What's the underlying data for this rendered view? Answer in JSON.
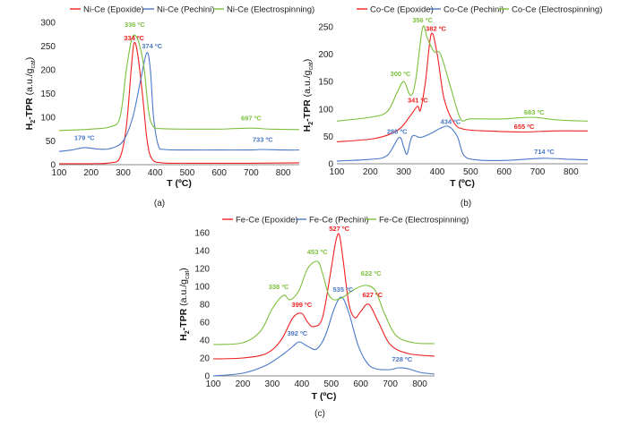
{
  "colors": {
    "red": "#f02020",
    "blue": "#4a78c8",
    "green": "#7cbf3c"
  },
  "chart_data": [
    {
      "type": "line",
      "panel_label": "(a)",
      "xlabel": "T (ºC)",
      "ylabel_main": "H",
      "ylabel_sub": "2",
      "ylabel_rest": "-TPR",
      "ylabel_unit_prefix": "(a.u./g",
      "ylabel_unit_sub": "cat",
      "ylabel_unit_suffix": ")",
      "xlim": [
        100,
        850
      ],
      "ylim": [
        0,
        300
      ],
      "xticks": [
        "100",
        "200",
        "300",
        "400",
        "500",
        "600",
        "700",
        "800"
      ],
      "yticks": [
        "0",
        "50",
        "100",
        "150",
        "200",
        "250",
        "300"
      ],
      "series": [
        {
          "name": "Ni-Ce (Epoxide)",
          "color": "#f02020",
          "x": [
            100,
            200,
            260,
            290,
            310,
            325,
            334,
            345,
            360,
            375,
            390,
            420,
            500,
            700,
            850
          ],
          "y": [
            2,
            2,
            4,
            15,
            80,
            200,
            256,
            235,
            150,
            50,
            12,
            4,
            3,
            3,
            4
          ]
        },
        {
          "name": "Ni-Ce (Pechini)",
          "color": "#4a78c8",
          "x": [
            100,
            140,
            179,
            220,
            260,
            300,
            330,
            355,
            374,
            385,
            395,
            410,
            430,
            500,
            600,
            700,
            733,
            800,
            850
          ],
          "y": [
            28,
            31,
            36,
            33,
            34,
            50,
            100,
            180,
            236,
            200,
            100,
            40,
            32,
            31,
            31,
            31,
            32,
            31,
            31
          ]
        },
        {
          "name": "Ni-Ce (Electrospinning)",
          "color": "#7cbf3c",
          "x": [
            100,
            200,
            260,
            290,
            310,
            325,
            336,
            350,
            365,
            380,
            395,
            420,
            500,
            600,
            697,
            760,
            850
          ],
          "y": [
            72,
            75,
            80,
            100,
            200,
            260,
            273,
            255,
            205,
            110,
            80,
            76,
            75,
            75,
            77,
            75,
            74
          ]
        }
      ],
      "annotations": [
        {
          "text": "336 ºC",
          "color": "#7cbf3c",
          "x": 336,
          "y": 291
        },
        {
          "text": "334 ºC",
          "color": "#f02020",
          "x": 334,
          "y": 262
        },
        {
          "text": "374 ºC",
          "color": "#4a78c8",
          "x": 390,
          "y": 245
        },
        {
          "text": "179 ºC",
          "color": "#4a78c8",
          "x": 179,
          "y": 52
        },
        {
          "text": "697 ºC",
          "color": "#7cbf3c",
          "x": 700,
          "y": 93
        },
        {
          "text": "733 ºC",
          "color": "#4a78c8",
          "x": 736,
          "y": 48
        }
      ],
      "legend": [
        "Ni-Ce (Epoxide)",
        "Ni-Ce (Pechini)",
        "Ni-Ce (Electrospinning)"
      ]
    },
    {
      "type": "line",
      "panel_label": "(b)",
      "xlabel": "T (ºC)",
      "ylabel_main": "H",
      "ylabel_sub": "2",
      "ylabel_rest": "-TPR",
      "ylabel_unit_prefix": "(a.u./g",
      "ylabel_unit_sub": "cat",
      "ylabel_unit_suffix": ")",
      "xlim": [
        100,
        850
      ],
      "ylim": [
        0,
        250
      ],
      "xticks": [
        "100",
        "200",
        "300",
        "400",
        "500",
        "600",
        "700",
        "800"
      ],
      "yticks": [
        "0",
        "50",
        "100",
        "150",
        "200",
        "250"
      ],
      "series": [
        {
          "name": "Co-Ce (Epoxide)",
          "color": "#f02020",
          "x": [
            100,
            200,
            250,
            290,
            320,
            341,
            350,
            365,
            382,
            400,
            420,
            450,
            480,
            550,
            655,
            750,
            850
          ],
          "y": [
            40,
            45,
            52,
            65,
            88,
            105,
            98,
            150,
            237,
            200,
            120,
            75,
            63,
            60,
            58,
            60,
            60
          ]
        },
        {
          "name": "Co-Ce (Pechini)",
          "color": "#4a78c8",
          "x": [
            100,
            200,
            250,
            286,
            300,
            310,
            325,
            350,
            380,
            410,
            434,
            460,
            480,
            520,
            600,
            714,
            800,
            850
          ],
          "y": [
            5,
            8,
            15,
            48,
            30,
            18,
            50,
            48,
            55,
            65,
            68,
            50,
            15,
            7,
            6,
            10,
            8,
            7
          ]
        },
        {
          "name": "Co-Ce (Electrospinning)",
          "color": "#7cbf3c",
          "x": [
            100,
            200,
            250,
            280,
            300,
            320,
            335,
            356,
            370,
            390,
            410,
            440,
            470,
            500,
            600,
            683,
            760,
            850
          ],
          "y": [
            78,
            85,
            95,
            130,
            150,
            125,
            150,
            248,
            230,
            205,
            200,
            140,
            82,
            82,
            82,
            85,
            80,
            78
          ]
        }
      ],
      "annotations": [
        {
          "text": "356 ºC",
          "color": "#7cbf3c",
          "x": 356,
          "y": 258
        },
        {
          "text": "382 ºC",
          "color": "#f02020",
          "x": 396,
          "y": 243
        },
        {
          "text": "300 ºC",
          "color": "#7cbf3c",
          "x": 290,
          "y": 160
        },
        {
          "text": "341 ºC",
          "color": "#f02020",
          "x": 342,
          "y": 112
        },
        {
          "text": "286 ºC",
          "color": "#4a78c8",
          "x": 280,
          "y": 55
        },
        {
          "text": "434 ºC",
          "color": "#4a78c8",
          "x": 440,
          "y": 73
        },
        {
          "text": "683 ºC",
          "color": "#7cbf3c",
          "x": 690,
          "y": 90
        },
        {
          "text": "655 ºC",
          "color": "#f02020",
          "x": 660,
          "y": 64
        },
        {
          "text": "714 ºC",
          "color": "#4a78c8",
          "x": 720,
          "y": 18
        }
      ],
      "legend": [
        "Co-Ce (Epoxide)",
        "Co-Ce (Pechini)",
        "Co-Ce (Electrospinning)"
      ]
    },
    {
      "type": "line",
      "panel_label": "(c)",
      "xlabel": "T (ºC)",
      "ylabel_main": "H",
      "ylabel_sub": "2",
      "ylabel_rest": "-TPR",
      "ylabel_unit_prefix": "(a.u./g",
      "ylabel_unit_sub": "cat",
      "ylabel_unit_suffix": ")",
      "xlim": [
        100,
        850
      ],
      "ylim": [
        0,
        160
      ],
      "xticks": [
        "100",
        "200",
        "300",
        "400",
        "500",
        "600",
        "700",
        "800"
      ],
      "yticks": [
        "0",
        "20",
        "40",
        "60",
        "80",
        "100",
        "120",
        "140",
        "160"
      ],
      "series": [
        {
          "name": "Fe-Ce (Epoxide)",
          "color": "#f02020",
          "x": [
            100,
            200,
            280,
            330,
            370,
            399,
            420,
            440,
            470,
            500,
            515,
            527,
            540,
            560,
            580,
            600,
            627,
            660,
            700,
            760,
            850
          ],
          "y": [
            19,
            20,
            25,
            40,
            65,
            70,
            60,
            55,
            65,
            120,
            150,
            158,
            130,
            80,
            65,
            72,
            80,
            60,
            35,
            25,
            22
          ]
        },
        {
          "name": "Fe-Ce (Pechini)",
          "color": "#4a78c8",
          "x": [
            100,
            200,
            280,
            340,
            370,
            392,
            420,
            450,
            480,
            510,
            535,
            560,
            590,
            620,
            650,
            700,
            728,
            760,
            800,
            850
          ],
          "y": [
            0,
            3,
            12,
            25,
            33,
            38,
            33,
            30,
            45,
            75,
            88,
            70,
            35,
            15,
            8,
            7,
            9,
            8,
            4,
            2
          ]
        },
        {
          "name": "Fe-Ce (Electrospinning)",
          "color": "#7cbf3c",
          "x": [
            100,
            200,
            260,
            300,
            338,
            360,
            390,
            420,
            453,
            470,
            490,
            510,
            540,
            570,
            600,
            622,
            650,
            680,
            720,
            780,
            850
          ],
          "y": [
            35,
            37,
            50,
            75,
            90,
            85,
            95,
            120,
            128,
            115,
            92,
            85,
            88,
            95,
            100,
            101,
            95,
            70,
            45,
            37,
            36
          ]
        }
      ],
      "annotations": [
        {
          "text": "527 ºC",
          "color": "#f02020",
          "x": 527,
          "y": 162
        },
        {
          "text": "453 ºC",
          "color": "#7cbf3c",
          "x": 453,
          "y": 136
        },
        {
          "text": "622 ºC",
          "color": "#7cbf3c",
          "x": 635,
          "y": 112
        },
        {
          "text": "338 ºC",
          "color": "#7cbf3c",
          "x": 322,
          "y": 97
        },
        {
          "text": "535 ºC",
          "color": "#4a78c8",
          "x": 540,
          "y": 94
        },
        {
          "text": "627 ºC",
          "color": "#f02020",
          "x": 640,
          "y": 88
        },
        {
          "text": "399 ºC",
          "color": "#f02020",
          "x": 400,
          "y": 77
        },
        {
          "text": "392 ºC",
          "color": "#4a78c8",
          "x": 385,
          "y": 45
        },
        {
          "text": "728 ºC",
          "color": "#4a78c8",
          "x": 740,
          "y": 16
        }
      ],
      "legend": [
        "Fe-Ce (Epoxide)",
        "Fe-Ce (Pechini)",
        "Fe-Ce (Electrospinning)"
      ]
    }
  ]
}
